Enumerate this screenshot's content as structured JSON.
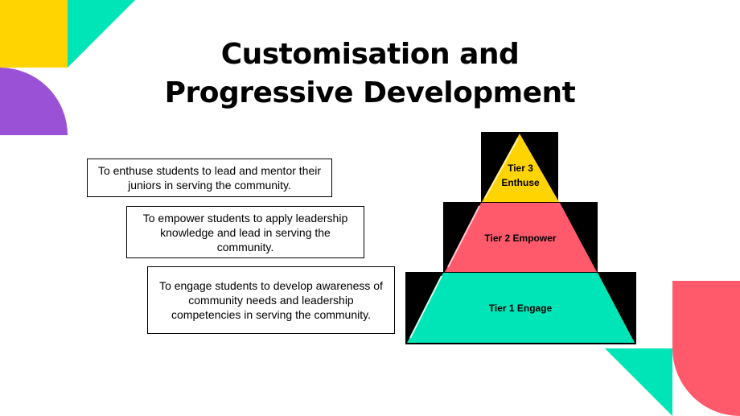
{
  "title": {
    "line1": "Customisation and",
    "line2": "Progressive Development"
  },
  "boxes": [
    {
      "text": "To enthuse students to lead and mentor their juniors in serving the community."
    },
    {
      "text": "To empower students to apply leadership knowledge and lead in serving the community."
    },
    {
      "text": "To engage students to develop awareness of community needs and leadership competencies in serving the community."
    }
  ],
  "pyramid": {
    "tier3_line1": "Tier 3",
    "tier3_line2": "Enthuse",
    "tier2": "Tier 2 Empower",
    "tier1": "Tier 1 Engage"
  },
  "colors": {
    "yellow": "#FFD400",
    "teal": "#00E5B8",
    "purple": "#9B51D6",
    "coral": "#FF5A6B",
    "black": "#000000"
  }
}
